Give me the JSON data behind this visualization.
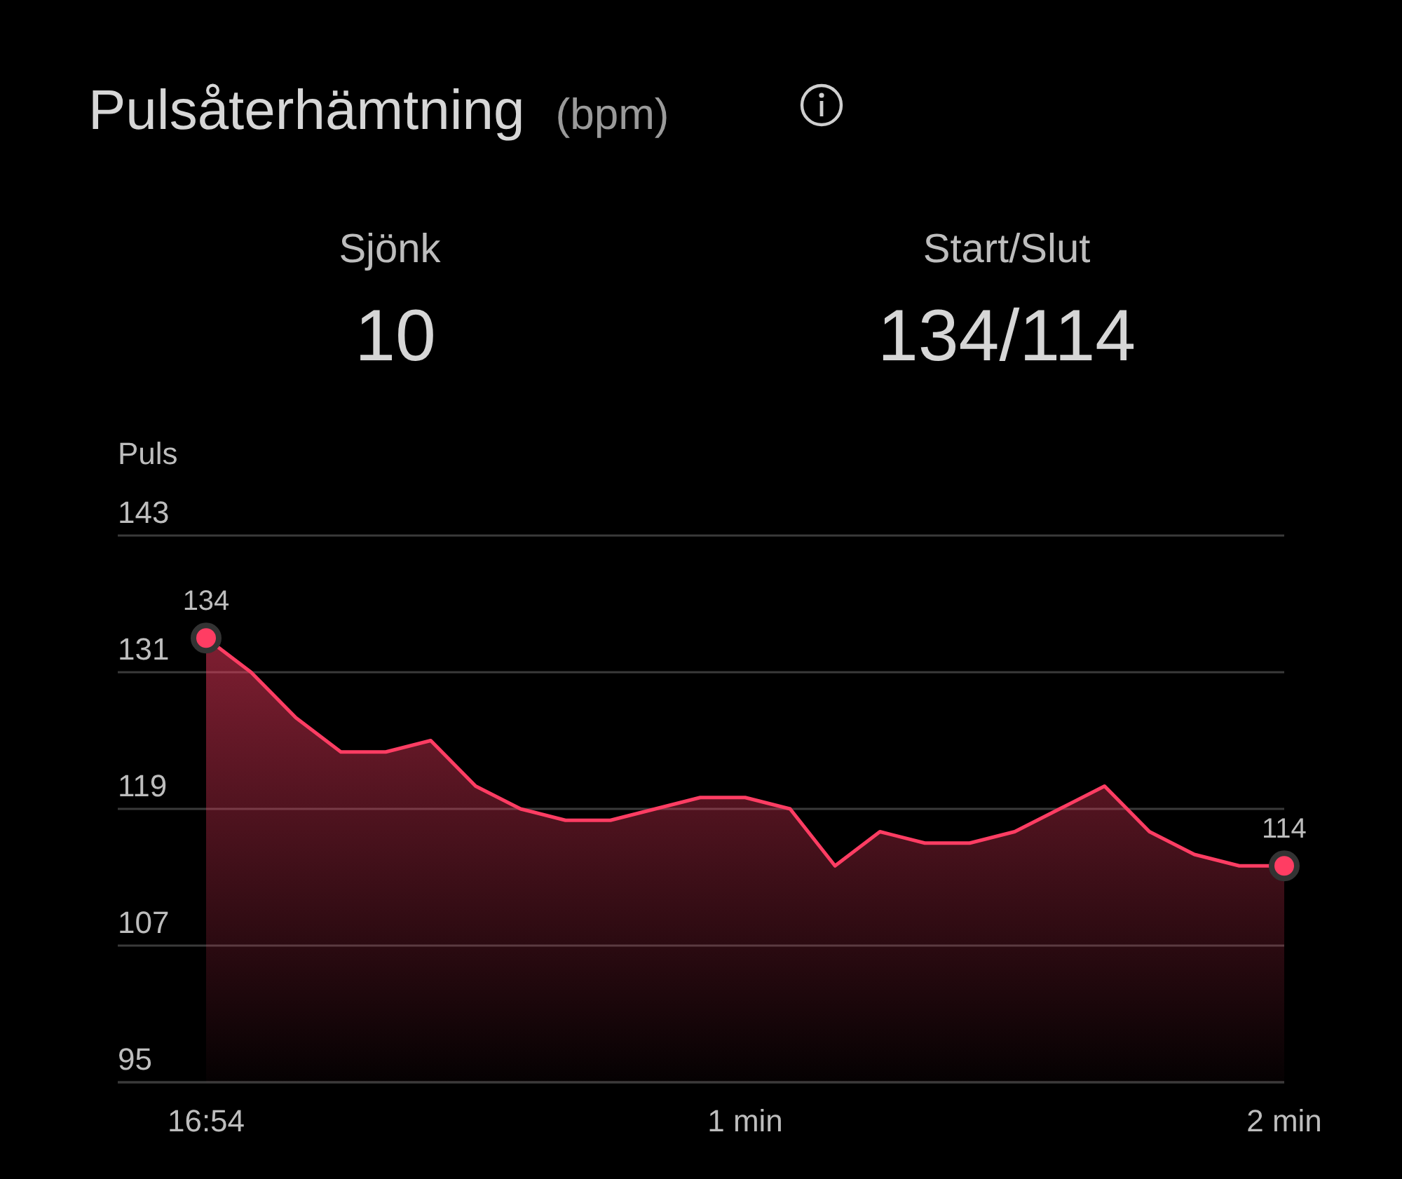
{
  "chart_data": {
    "type": "area",
    "title": "Pulsåterhämtning",
    "subtitle": "(bpm)",
    "ylabel": "Puls",
    "annotations": [
      "Sjönk",
      "10",
      "Start/Slut",
      "134/114"
    ],
    "categories": [
      "16:54",
      null,
      null,
      null,
      null,
      null,
      null,
      null,
      null,
      null,
      null,
      null,
      "1 min",
      null,
      null,
      null,
      null,
      null,
      null,
      null,
      null,
      null,
      null,
      null,
      "2 min"
    ],
    "ylim": [
      95,
      143
    ],
    "yticks": [
      95,
      107,
      119,
      131,
      143
    ],
    "grid": "y",
    "series": [
      {
        "color": "#ff3d63",
        "values": [
          134,
          131,
          127,
          124,
          124,
          125,
          121,
          119,
          118,
          118,
          119,
          120,
          120,
          119,
          114,
          117,
          116,
          116,
          117,
          119,
          121,
          117,
          115,
          114,
          114
        ],
        "value_labels": [
          "134",
          null,
          null,
          null,
          null,
          null,
          null,
          null,
          null,
          null,
          null,
          null,
          null,
          null,
          null,
          null,
          null,
          null,
          null,
          null,
          null,
          null,
          null,
          null,
          "114"
        ]
      }
    ]
  }
}
